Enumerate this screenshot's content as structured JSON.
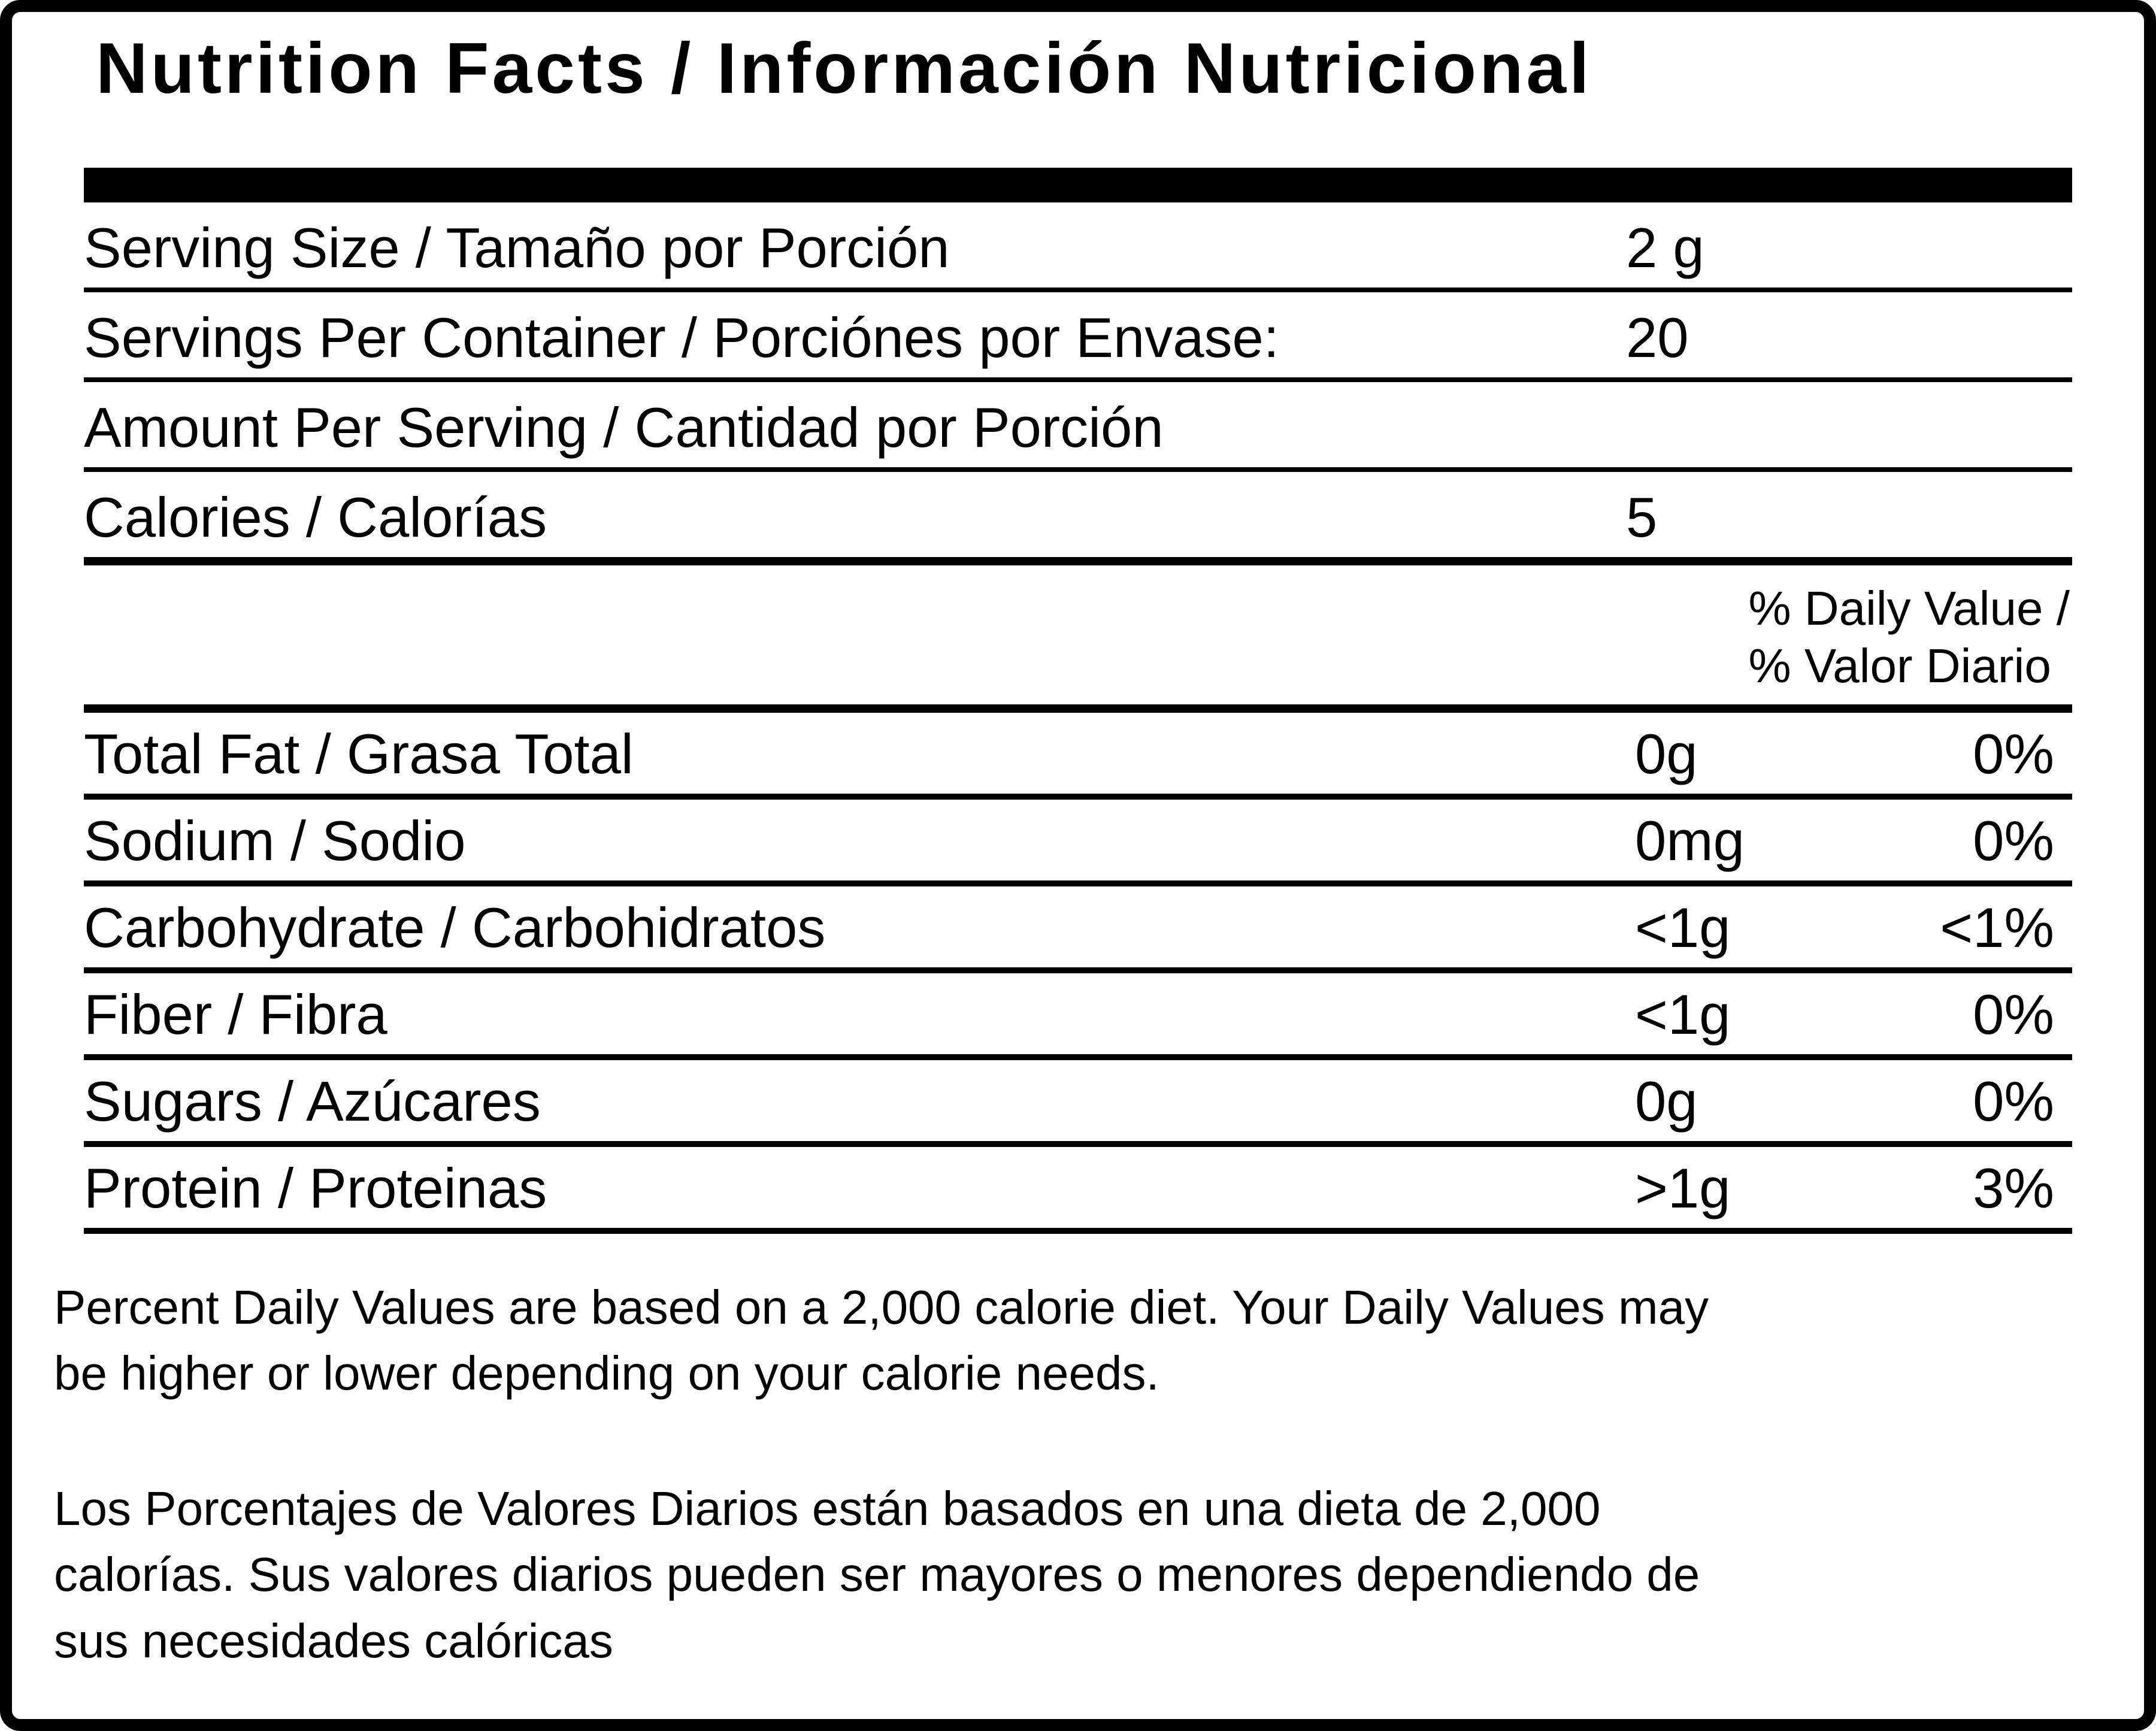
{
  "label": {
    "title": "Nutrition Facts / Información Nutricional",
    "serving_rows": [
      {
        "label": "Serving Size / Tamaño por Porción",
        "value": "2 g"
      },
      {
        "label": "Servings Per Container / Porciónes por Envase:",
        "value": "20"
      },
      {
        "label": "Amount Per Serving / Cantidad por Porción",
        "value": ""
      },
      {
        "label": "Calories / Calorías",
        "value": "5"
      }
    ],
    "daily_value_header": "% Daily Value /\n% Valor Diario",
    "nutrient_rows": [
      {
        "label": "Total Fat / Grasa Total",
        "amount": "0g",
        "percent": "0%"
      },
      {
        "label": "Sodium / Sodio",
        "amount": "0mg",
        "percent": "0%"
      },
      {
        "label": "Carbohydrate / Carbohidratos",
        "amount": "<1g",
        "percent": "<1%"
      },
      {
        "label": "Fiber / Fibra",
        "amount": "<1g",
        "percent": "0%"
      },
      {
        "label": "Sugars / Azúcares",
        "amount": "0g",
        "percent": "0%"
      },
      {
        "label": "Protein / Proteinas",
        "amount": ">1g",
        "percent": "3%"
      }
    ],
    "footnotes": {
      "english": "Percent Daily Values are based on a 2,000 calorie diet. Your Daily Values may\nbe higher or lower depending on your calorie needs.",
      "spanish": "Los Porcentajes de Valores Diarios están basados en una dieta de 2,000\ncalorías. Sus valores diarios pueden ser mayores o menores dependiendo de\nsus necesidades calóricas"
    },
    "colors": {
      "text": "#000000",
      "background": "#ffffff"
    }
  }
}
